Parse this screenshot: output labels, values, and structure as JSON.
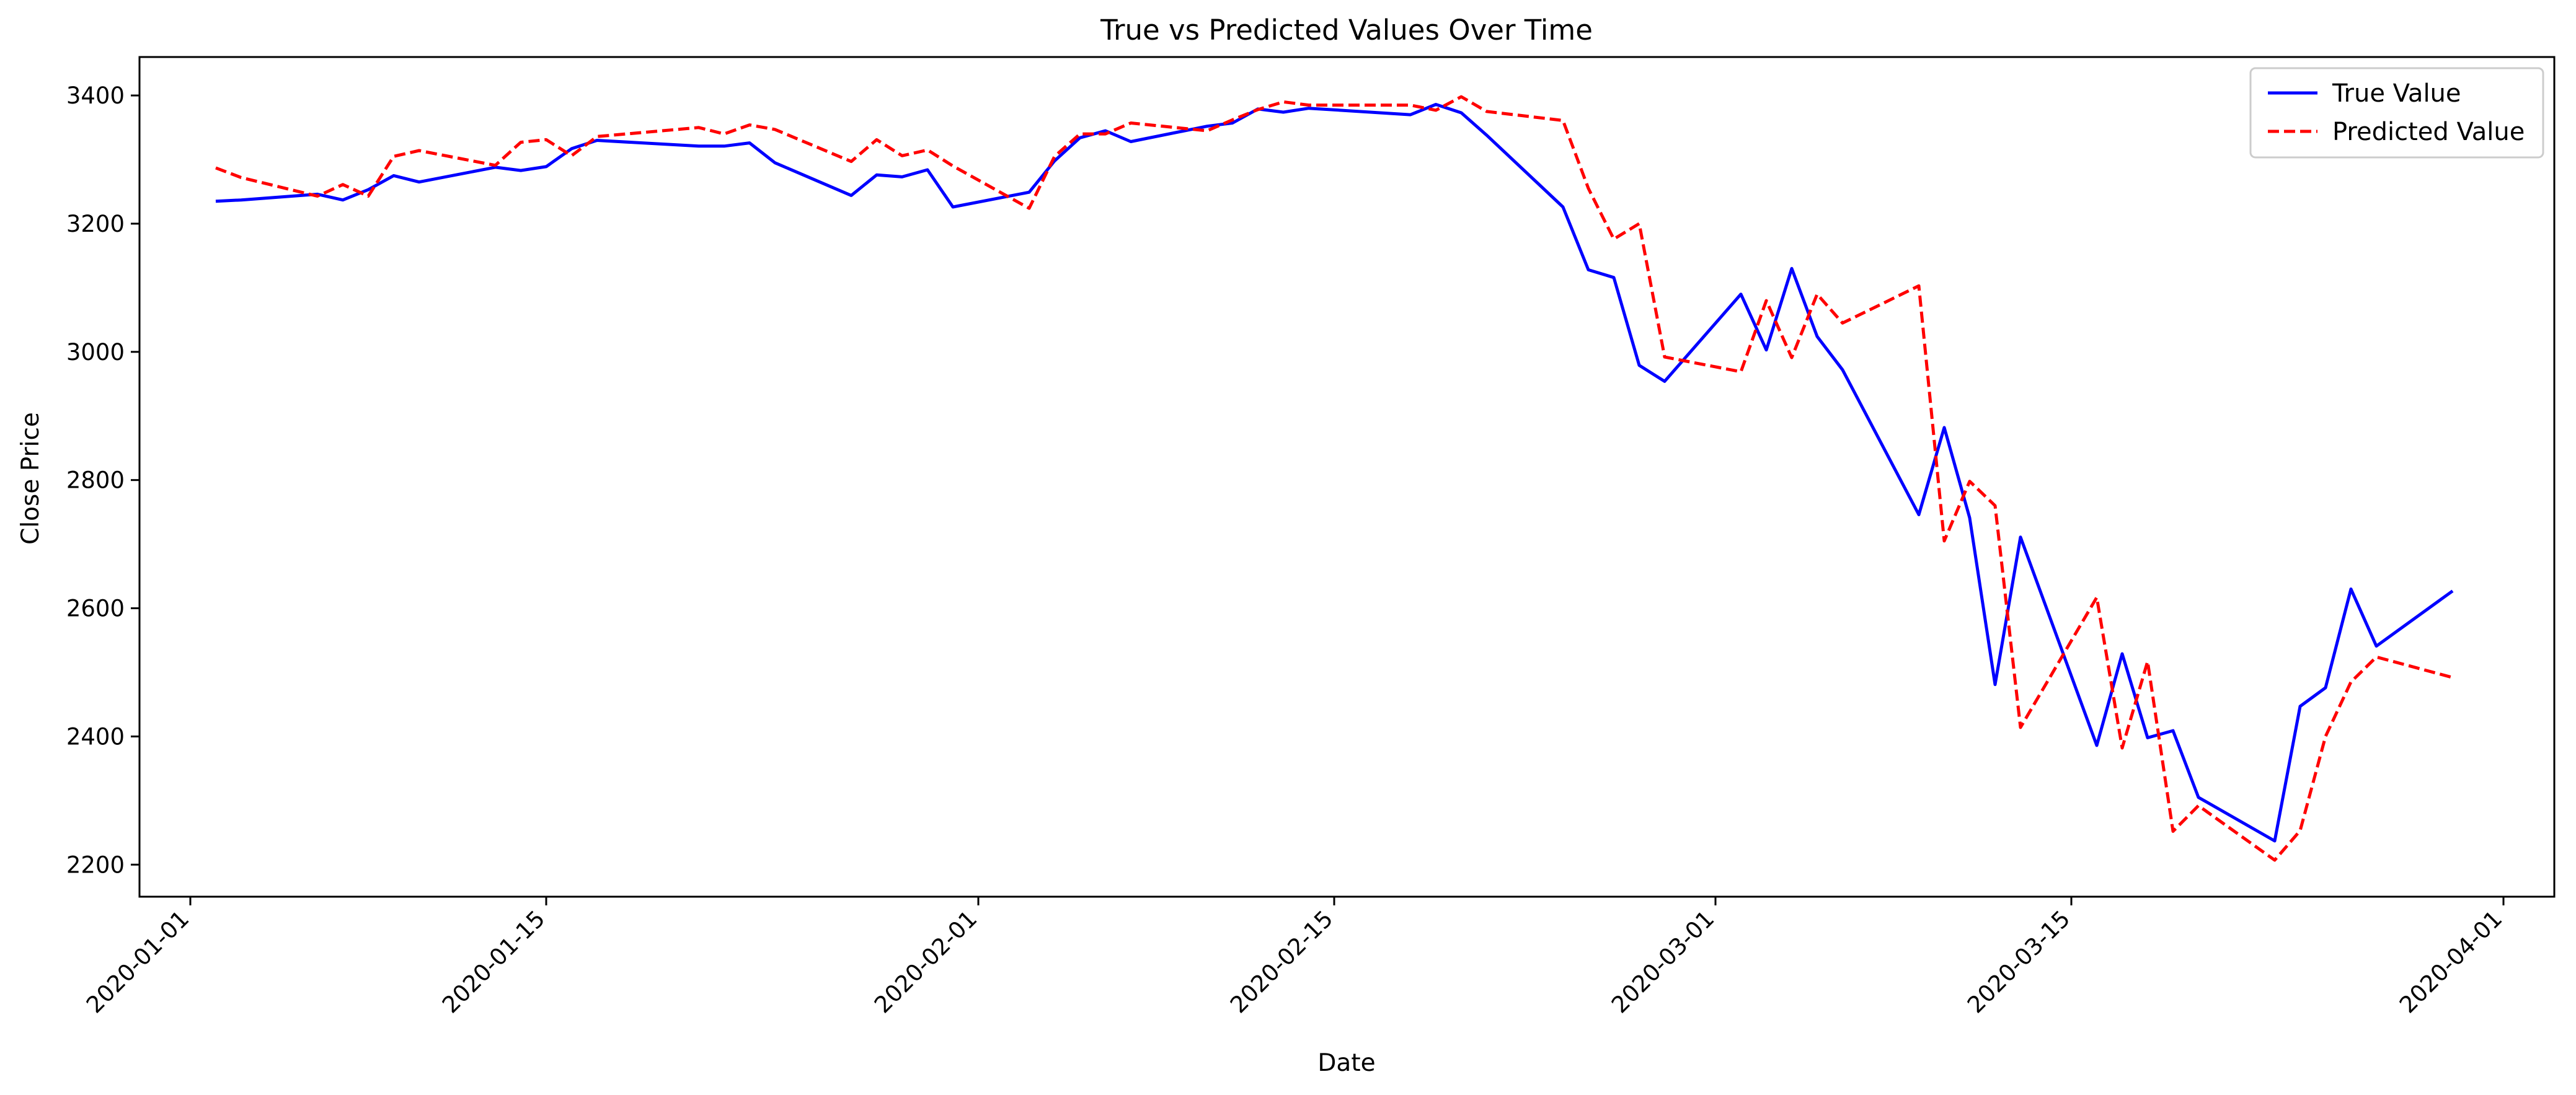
{
  "chart_data": {
    "type": "line",
    "title": "True vs Predicted Values Over Time",
    "xlabel": "Date",
    "ylabel": "Close Price",
    "x_ticks": [
      "2020-01-01",
      "2020-01-15",
      "2020-02-01",
      "2020-02-15",
      "2020-03-01",
      "2020-03-15",
      "2020-04-01"
    ],
    "y_ticks": [
      2200,
      2400,
      2600,
      2800,
      3000,
      3200,
      3400
    ],
    "xlim": [
      "2019-12-30",
      "2020-04-03"
    ],
    "ylim": [
      2150,
      3460
    ],
    "grid": false,
    "legend_position": "top-right",
    "series": [
      {
        "name": "True Value",
        "color": "#0000ff",
        "style": "solid",
        "points": [
          [
            "2020-01-02",
            3235
          ],
          [
            "2020-01-03",
            3237
          ],
          [
            "2020-01-06",
            3246
          ],
          [
            "2020-01-07",
            3237
          ],
          [
            "2020-01-08",
            3253
          ],
          [
            "2020-01-09",
            3275
          ],
          [
            "2020-01-10",
            3265
          ],
          [
            "2020-01-13",
            3288
          ],
          [
            "2020-01-14",
            3283
          ],
          [
            "2020-01-15",
            3289
          ],
          [
            "2020-01-16",
            3317
          ],
          [
            "2020-01-17",
            3330
          ],
          [
            "2020-01-21",
            3321
          ],
          [
            "2020-01-22",
            3321
          ],
          [
            "2020-01-23",
            3326
          ],
          [
            "2020-01-24",
            3295
          ],
          [
            "2020-01-27",
            3244
          ],
          [
            "2020-01-28",
            3276
          ],
          [
            "2020-01-29",
            3273
          ],
          [
            "2020-01-30",
            3284
          ],
          [
            "2020-01-31",
            3226
          ],
          [
            "2020-02-03",
            3249
          ],
          [
            "2020-02-04",
            3298
          ],
          [
            "2020-02-05",
            3334
          ],
          [
            "2020-02-06",
            3345
          ],
          [
            "2020-02-07",
            3328
          ],
          [
            "2020-02-10",
            3352
          ],
          [
            "2020-02-11",
            3357
          ],
          [
            "2020-02-12",
            3379
          ],
          [
            "2020-02-13",
            3374
          ],
          [
            "2020-02-14",
            3380
          ],
          [
            "2020-02-18",
            3370
          ],
          [
            "2020-02-19",
            3386
          ],
          [
            "2020-02-20",
            3373
          ],
          [
            "2020-02-21",
            3338
          ],
          [
            "2020-02-24",
            3226
          ],
          [
            "2020-02-25",
            3128
          ],
          [
            "2020-02-26",
            3116
          ],
          [
            "2020-02-27",
            2979
          ],
          [
            "2020-02-28",
            2954
          ],
          [
            "2020-03-02",
            3090
          ],
          [
            "2020-03-03",
            3003
          ],
          [
            "2020-03-04",
            3130
          ],
          [
            "2020-03-05",
            3024
          ],
          [
            "2020-03-06",
            2972
          ],
          [
            "2020-03-09",
            2746
          ],
          [
            "2020-03-10",
            2882
          ],
          [
            "2020-03-11",
            2741
          ],
          [
            "2020-03-12",
            2481
          ],
          [
            "2020-03-13",
            2711
          ],
          [
            "2020-03-16",
            2386
          ],
          [
            "2020-03-17",
            2529
          ],
          [
            "2020-03-18",
            2398
          ],
          [
            "2020-03-19",
            2409
          ],
          [
            "2020-03-20",
            2305
          ],
          [
            "2020-03-23",
            2237
          ],
          [
            "2020-03-24",
            2447
          ],
          [
            "2020-03-25",
            2476
          ],
          [
            "2020-03-26",
            2630
          ],
          [
            "2020-03-27",
            2541
          ],
          [
            "2020-03-30",
            2627
          ]
        ]
      },
      {
        "name": "Predicted Value",
        "color": "#ff0000",
        "style": "dashed",
        "points": [
          [
            "2020-01-02",
            3287
          ],
          [
            "2020-01-03",
            3272
          ],
          [
            "2020-01-06",
            3243
          ],
          [
            "2020-01-07",
            3261
          ],
          [
            "2020-01-08",
            3243
          ],
          [
            "2020-01-09",
            3305
          ],
          [
            "2020-01-10",
            3314
          ],
          [
            "2020-01-13",
            3291
          ],
          [
            "2020-01-14",
            3327
          ],
          [
            "2020-01-15",
            3331
          ],
          [
            "2020-01-16",
            3306
          ],
          [
            "2020-01-17",
            3336
          ],
          [
            "2020-01-21",
            3350
          ],
          [
            "2020-01-22",
            3340
          ],
          [
            "2020-01-23",
            3354
          ],
          [
            "2020-01-24",
            3347
          ],
          [
            "2020-01-27",
            3297
          ],
          [
            "2020-01-28",
            3331
          ],
          [
            "2020-01-29",
            3306
          ],
          [
            "2020-01-30",
            3315
          ],
          [
            "2020-01-31",
            3290
          ],
          [
            "2020-02-03",
            3224
          ],
          [
            "2020-02-04",
            3305
          ],
          [
            "2020-02-05",
            3340
          ],
          [
            "2020-02-06",
            3340
          ],
          [
            "2020-02-07",
            3357
          ],
          [
            "2020-02-10",
            3345
          ],
          [
            "2020-02-11",
            3362
          ],
          [
            "2020-02-12",
            3378
          ],
          [
            "2020-02-13",
            3390
          ],
          [
            "2020-02-14",
            3385
          ],
          [
            "2020-02-18",
            3385
          ],
          [
            "2020-02-19",
            3377
          ],
          [
            "2020-02-20",
            3398
          ],
          [
            "2020-02-21",
            3375
          ],
          [
            "2020-02-24",
            3361
          ],
          [
            "2020-02-25",
            3255
          ],
          [
            "2020-02-26",
            3176
          ],
          [
            "2020-02-27",
            3200
          ],
          [
            "2020-02-28",
            2992
          ],
          [
            "2020-03-02",
            2969
          ],
          [
            "2020-03-03",
            3080
          ],
          [
            "2020-03-04",
            2991
          ],
          [
            "2020-03-05",
            3090
          ],
          [
            "2020-03-06",
            3045
          ],
          [
            "2020-03-09",
            3103
          ],
          [
            "2020-03-10",
            2705
          ],
          [
            "2020-03-11",
            2798
          ],
          [
            "2020-03-12",
            2760
          ],
          [
            "2020-03-13",
            2414
          ],
          [
            "2020-03-16",
            2617
          ],
          [
            "2020-03-17",
            2382
          ],
          [
            "2020-03-18",
            2517
          ],
          [
            "2020-03-19",
            2252
          ],
          [
            "2020-03-20",
            2292
          ],
          [
            "2020-03-23",
            2207
          ],
          [
            "2020-03-24",
            2253
          ],
          [
            "2020-03-25",
            2400
          ],
          [
            "2020-03-26",
            2485
          ],
          [
            "2020-03-27",
            2524
          ],
          [
            "2020-03-30",
            2492
          ]
        ]
      }
    ]
  }
}
